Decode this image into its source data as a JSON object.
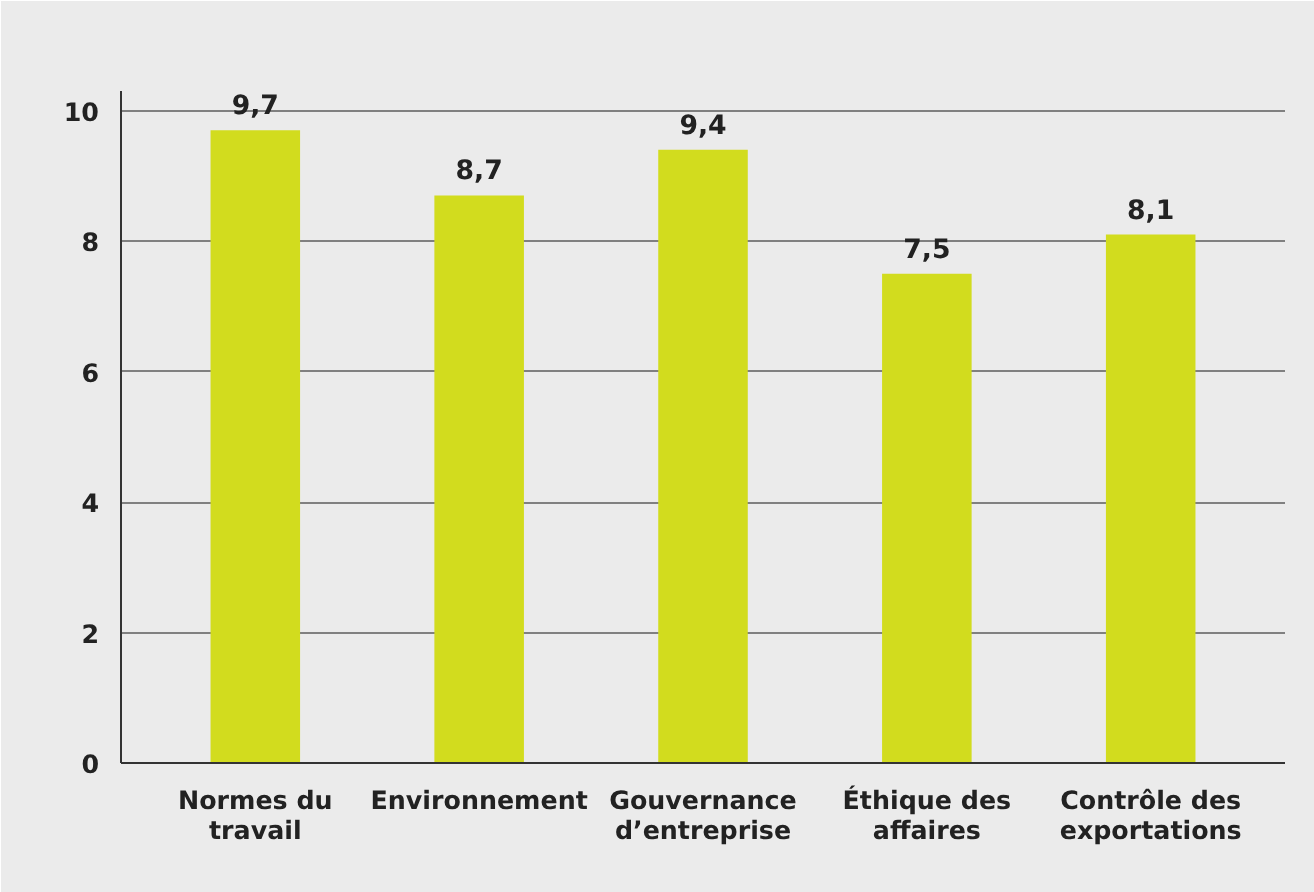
{
  "chart_data": {
    "type": "bar",
    "categories": [
      "Normes du travail",
      "Environnement",
      "Gouvernance d’entreprise",
      "Éthique des affaires",
      "Contrôle des exportations"
    ],
    "values": [
      9.7,
      8.7,
      9.4,
      7.5,
      8.1
    ],
    "value_labels": [
      "9,7",
      "8,7",
      "9,4",
      "7,5",
      "8,1"
    ],
    "color": "#d2dc1e",
    "ylim": [
      0,
      10.3
    ],
    "yticks": [
      0,
      2,
      4,
      6,
      8,
      10
    ],
    "grid": "y"
  }
}
